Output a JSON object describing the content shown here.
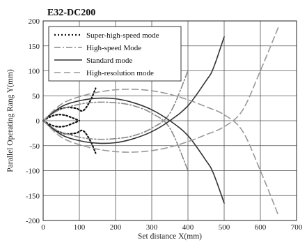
{
  "chart_data": {
    "type": "line",
    "title": "E32-DC200",
    "xlabel": "Set distance X(mm)",
    "ylabel": "Parallel Operating Rang Y(mm)",
    "xlim": [
      0,
      700
    ],
    "ylim": [
      -200,
      200
    ],
    "xticks": [
      0,
      100,
      200,
      300,
      400,
      500,
      600,
      700
    ],
    "yticks": [
      -200,
      -150,
      -100,
      -50,
      0,
      50,
      100,
      150,
      200
    ],
    "grid": true,
    "legend_position": "top-left",
    "series": [
      {
        "name": "Super-high-speed mode",
        "style": "dotted",
        "color": "#111111",
        "x": [
          0,
          20,
          40,
          60,
          80,
          100
        ],
        "y": [
          0,
          8,
          12,
          11,
          6,
          0
        ],
        "branches": [
          {
            "x": [
              0,
              20,
              40,
              60,
              80,
              100
            ],
            "y": [
              0,
              8,
              12,
              11,
              6,
              0
            ]
          },
          {
            "x": [
              0,
              20,
              40,
              60,
              80,
              100
            ],
            "y": [
              0,
              -8,
              -12,
              -11,
              -6,
              0
            ]
          },
          {
            "x": [
              0,
              30,
              60,
              90,
              110,
              130,
              145
            ],
            "y": [
              0,
              17,
              26,
              25,
              20,
              40,
              65
            ]
          },
          {
            "x": [
              0,
              30,
              60,
              90,
              110,
              130,
              145
            ],
            "y": [
              0,
              -17,
              -26,
              -25,
              -20,
              -40,
              -65
            ]
          }
        ]
      },
      {
        "name": "High-speed Mode",
        "style": "dash-dot",
        "color": "#888888",
        "x": [
          0,
          40,
          100,
          150,
          200,
          250,
          300,
          350,
          400
        ],
        "y": [
          0,
          20,
          33,
          37,
          36,
          30,
          15,
          -15,
          -100
        ],
        "branches": [
          {
            "x": [
              0,
              40,
              100,
              150,
              200,
              250,
              300,
              350,
              400
            ],
            "y": [
              0,
              20,
              33,
              37,
              36,
              30,
              15,
              -15,
              -100
            ]
          },
          {
            "x": [
              0,
              40,
              100,
              150,
              200,
              250,
              300,
              350,
              400
            ],
            "y": [
              0,
              -20,
              -33,
              -37,
              -36,
              -30,
              -15,
              15,
              100
            ]
          }
        ]
      },
      {
        "name": "Standard mode",
        "style": "solid",
        "color": "#333333",
        "x": [
          0,
          50,
          100,
          150,
          200,
          250,
          300,
          350,
          400,
          450,
          470,
          500
        ],
        "y": [
          0,
          28,
          40,
          45,
          44,
          36,
          22,
          0,
          -30,
          -80,
          -105,
          -165
        ],
        "branches": [
          {
            "x": [
              0,
              50,
              100,
              150,
              200,
              250,
              300,
              350,
              400,
              450,
              470,
              500
            ],
            "y": [
              0,
              28,
              40,
              45,
              44,
              36,
              22,
              0,
              -30,
              -80,
              -105,
              -165
            ]
          },
          {
            "x": [
              0,
              50,
              100,
              150,
              200,
              250,
              300,
              350,
              400,
              450,
              470,
              500
            ],
            "y": [
              0,
              -28,
              -40,
              -45,
              -44,
              -36,
              -22,
              0,
              30,
              80,
              105,
              168
            ]
          }
        ]
      },
      {
        "name": "High-resolution mode",
        "style": "dashed",
        "color": "#999999",
        "x": [
          0,
          50,
          100,
          150,
          200,
          250,
          300,
          350,
          400,
          450,
          500,
          550,
          600,
          650
        ],
        "y": [
          0,
          33,
          48,
          57,
          62,
          63,
          60,
          53,
          42,
          28,
          12,
          -20,
          -100,
          -190
        ],
        "branches": [
          {
            "x": [
              0,
              50,
              100,
              150,
              200,
              250,
              300,
              350,
              400,
              450,
              500,
              550,
              600,
              650
            ],
            "y": [
              0,
              33,
              48,
              57,
              62,
              63,
              60,
              53,
              42,
              28,
              12,
              -20,
              -100,
              -190
            ]
          },
          {
            "x": [
              0,
              50,
              100,
              150,
              200,
              250,
              300,
              350,
              400,
              450,
              500,
              550,
              600,
              650
            ],
            "y": [
              0,
              -33,
              -48,
              -57,
              -62,
              -63,
              -60,
              -53,
              -42,
              -28,
              -12,
              20,
              100,
              188
            ]
          }
        ]
      }
    ]
  }
}
